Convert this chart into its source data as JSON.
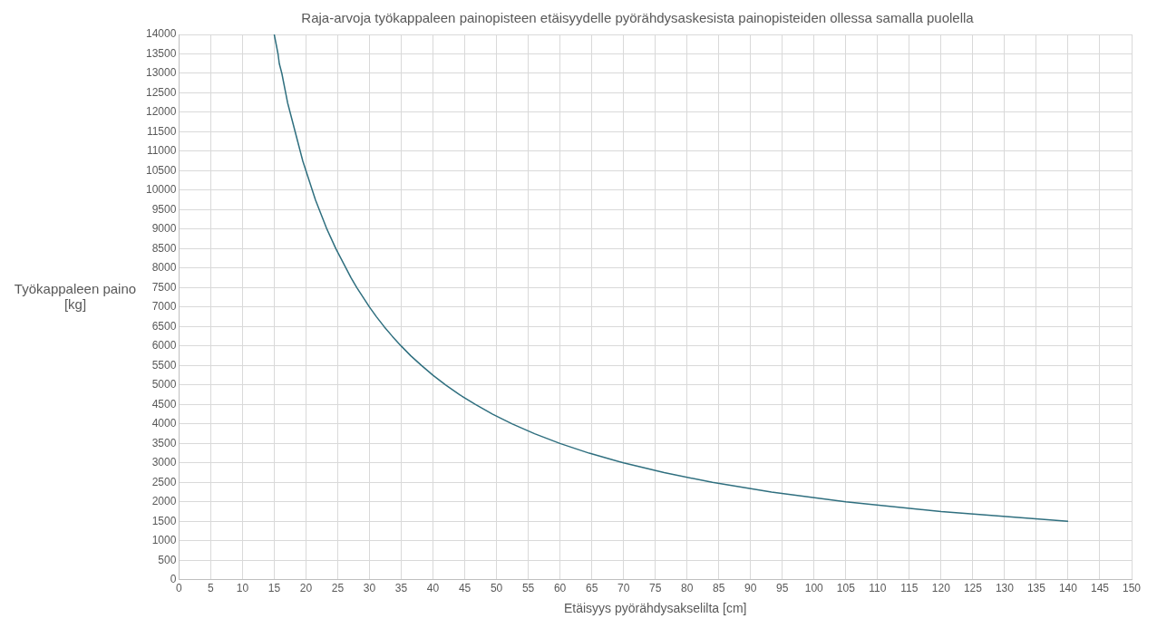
{
  "chart_data": {
    "type": "line",
    "title": "Raja-arvoja työkappaleen painopisteen etäisyydelle pyörähdysaskesista painopisteiden ollessa samalla puolella",
    "xlabel": "Etäisyys pyörähdysakselilta [cm]",
    "ylabel": "Työkappaleen paino [kg]",
    "series": [
      {
        "color": "#2f6f7f",
        "x": [
          15,
          15.3,
          15.6,
          15.8,
          16.2,
          16.5,
          16.8,
          17.1,
          17.5,
          17.9,
          18.3,
          18.7,
          19.1,
          19.5,
          20,
          20.5,
          21,
          21.5,
          22.1,
          22.7,
          23.3,
          24,
          24.7,
          25.5,
          26.3,
          27.1,
          28,
          29,
          30,
          31.1,
          32.3,
          33.6,
          35,
          36.5,
          38.2,
          40,
          42,
          44.2,
          46.7,
          49.4,
          52.5,
          56,
          60,
          64.6,
          70,
          76.4,
          84,
          93.3,
          105,
          120,
          140
        ],
        "values": [
          14000,
          13750,
          13500,
          13250,
          13000,
          12750,
          12500,
          12250,
          12000,
          11750,
          11500,
          11250,
          11000,
          10750,
          10500,
          10250,
          10000,
          9750,
          9500,
          9250,
          9000,
          8750,
          8500,
          8250,
          8000,
          7750,
          7500,
          7250,
          7000,
          6750,
          6500,
          6250,
          6000,
          5750,
          5500,
          5250,
          5000,
          4750,
          4500,
          4250,
          4000,
          3750,
          3500,
          3250,
          3000,
          2750,
          2500,
          2250,
          2000,
          1750,
          1500
        ]
      }
    ],
    "xlim": [
      0,
      150
    ],
    "xticks": [
      0,
      5,
      10,
      15,
      20,
      25,
      30,
      35,
      40,
      45,
      50,
      55,
      60,
      65,
      70,
      75,
      80,
      85,
      90,
      95,
      100,
      105,
      110,
      115,
      120,
      125,
      130,
      135,
      140,
      145,
      150
    ],
    "ylim": [
      0,
      14000
    ],
    "yticks": [
      0,
      500,
      1000,
      1500,
      2000,
      2500,
      3000,
      3500,
      4000,
      4500,
      5000,
      5500,
      6000,
      6500,
      7000,
      7500,
      8000,
      8500,
      9000,
      9500,
      10000,
      10500,
      11000,
      11500,
      12000,
      12500,
      13000,
      13500,
      14000
    ],
    "grid": true,
    "legend": false,
    "marker": "none",
    "line_style": "solid"
  }
}
